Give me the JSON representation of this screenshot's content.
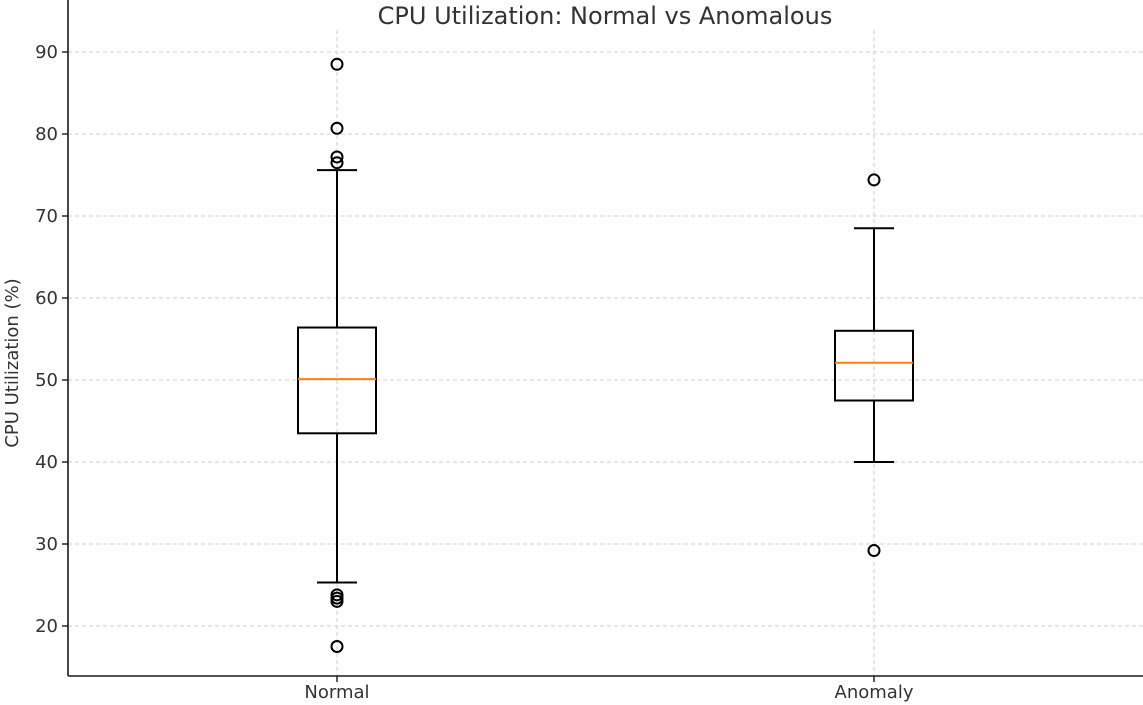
{
  "chart_data": {
    "type": "box",
    "title": "CPU Utilization: Normal vs Anomalous",
    "xlabel": "",
    "ylabel": "CPU Utilization (%)",
    "ylim": [
      15,
      92
    ],
    "yticks": [
      20,
      30,
      40,
      50,
      60,
      70,
      80,
      90
    ],
    "grid": true,
    "categories": [
      "Normal",
      "Anomaly"
    ],
    "series": [
      {
        "name": "Normal",
        "whisker_low": 25.3,
        "q1": 43.5,
        "median": 50.1,
        "q3": 56.4,
        "whisker_high": 75.6,
        "outliers": [
          88.5,
          80.7,
          77.2,
          76.5,
          23.8,
          23.4,
          23.0,
          17.5
        ]
      },
      {
        "name": "Anomaly",
        "whisker_low": 40.0,
        "q1": 47.5,
        "median": 52.1,
        "q3": 56.0,
        "whisker_high": 68.5,
        "outliers": [
          74.4,
          29.2
        ]
      }
    ],
    "colors": {
      "median": "#ff7f0e",
      "box": "#000000",
      "grid": "#cfcfcf"
    }
  }
}
